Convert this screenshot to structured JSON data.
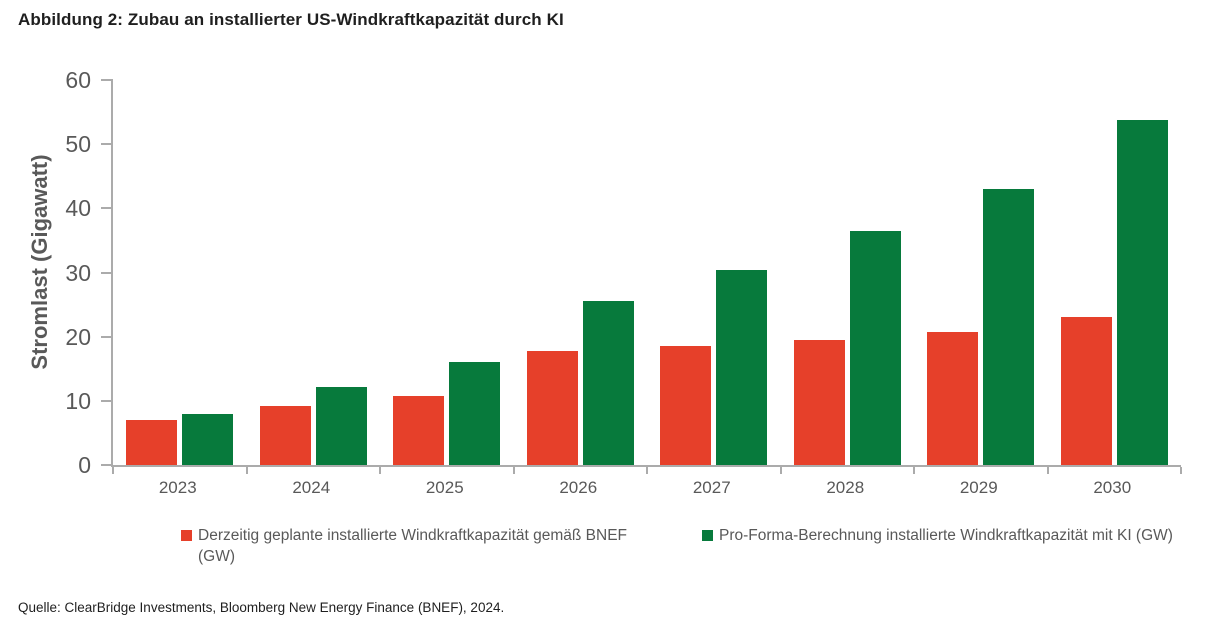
{
  "title": "Abbildung 2: Zubau an installierter US-Windkraftkapazität durch KI",
  "source": "Quelle: ClearBridge Investments, Bloomberg New Energy Finance (BNEF), 2024.",
  "colors": {
    "series_bnef": "#E6402A",
    "series_ki": "#077A3C",
    "axis_line": "#ababab",
    "tick_text": "#595959",
    "title_text": "#1f1f1f"
  },
  "chart_data": {
    "type": "bar",
    "title": "Abbildung 2: Zubau an installierter US-Windkraftkapazität durch KI",
    "xlabel": "",
    "ylabel": "Stromlast (Gigawatt)",
    "ylim": [
      0,
      60
    ],
    "ytick_step": 10,
    "grid": false,
    "legend_position": "bottom",
    "categories": [
      "2023",
      "2024",
      "2025",
      "2026",
      "2027",
      "2028",
      "2029",
      "2030"
    ],
    "series": [
      {
        "name": "Derzeitig geplante installierte Windkraftkapazität gemäß BNEF (GW)",
        "color": "#E6402A",
        "values": [
          7.0,
          9.2,
          10.8,
          17.8,
          18.6,
          19.5,
          20.7,
          23.0
        ]
      },
      {
        "name": "Pro-Forma-Berechnung installierte Windkraftkapazität mit KI (GW)",
        "color": "#077A3C",
        "values": [
          8.0,
          12.2,
          16.0,
          25.6,
          30.4,
          36.5,
          43.0,
          53.7
        ]
      }
    ]
  }
}
